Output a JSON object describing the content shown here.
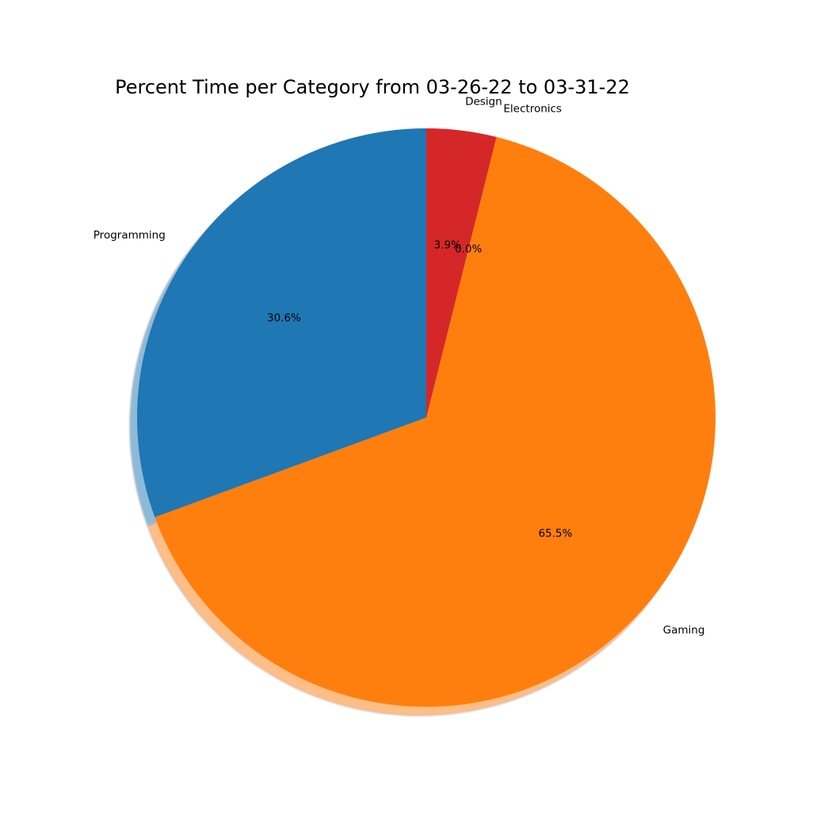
{
  "chart_data": {
    "type": "pie",
    "title": "Percent Time per Category from 03-26-22 to 03-31-22",
    "start_angle_deg": 90,
    "direction": "counterclockwise",
    "shadow": true,
    "slices": [
      {
        "label": "Programming",
        "percent": 30.6,
        "pct_label": "30.6%",
        "color": "#1f77b4"
      },
      {
        "label": "Gaming",
        "percent": 65.5,
        "pct_label": "65.5%",
        "color": "#ff7f0e"
      },
      {
        "label": "Electronics",
        "percent": 0.0,
        "pct_label": "0.0%",
        "color": "#2ca02c"
      },
      {
        "label": "Design",
        "percent": 3.9,
        "pct_label": "3.9%",
        "color": "#d62728"
      }
    ]
  }
}
